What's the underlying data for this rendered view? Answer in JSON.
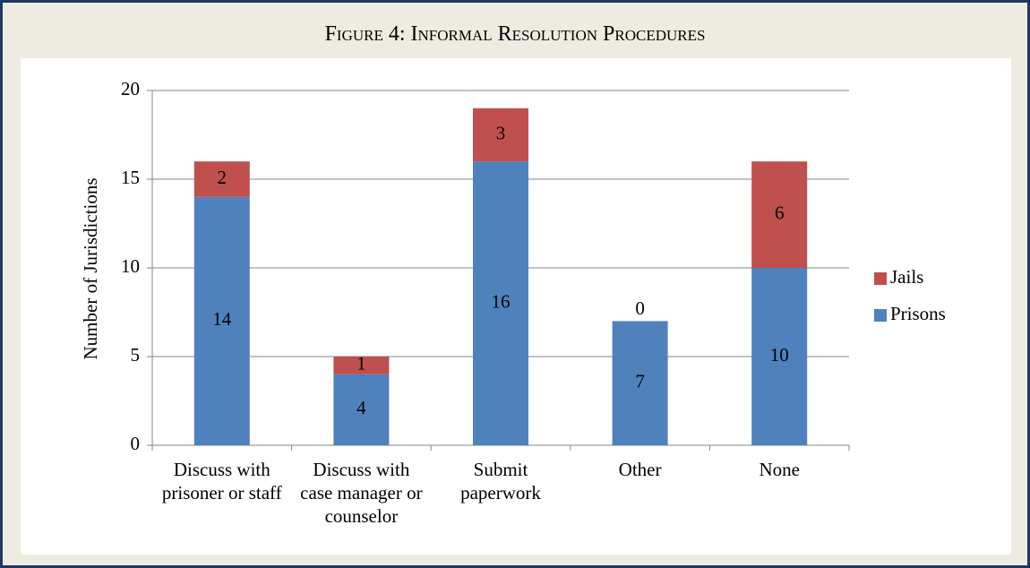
{
  "chart_data": {
    "type": "bar",
    "stacked": true,
    "title": "Figure 4: Informal Resolution Procedures",
    "y_label": "Number of Jurisdictions",
    "categories": [
      "Discuss with prisoner or staff",
      "Discuss with case manager or counselor",
      "Submit paperwork",
      "Other",
      "None"
    ],
    "series": [
      {
        "name": "Prisons",
        "color": "#4f81bd",
        "values": [
          14,
          4,
          16,
          7,
          10
        ]
      },
      {
        "name": "Jails",
        "color": "#c0504d",
        "values": [
          2,
          1,
          3,
          0,
          6
        ]
      }
    ],
    "ylim": [
      0,
      20
    ],
    "yticks": [
      0,
      5,
      10,
      15,
      20
    ],
    "grid": true,
    "legend": "right"
  }
}
